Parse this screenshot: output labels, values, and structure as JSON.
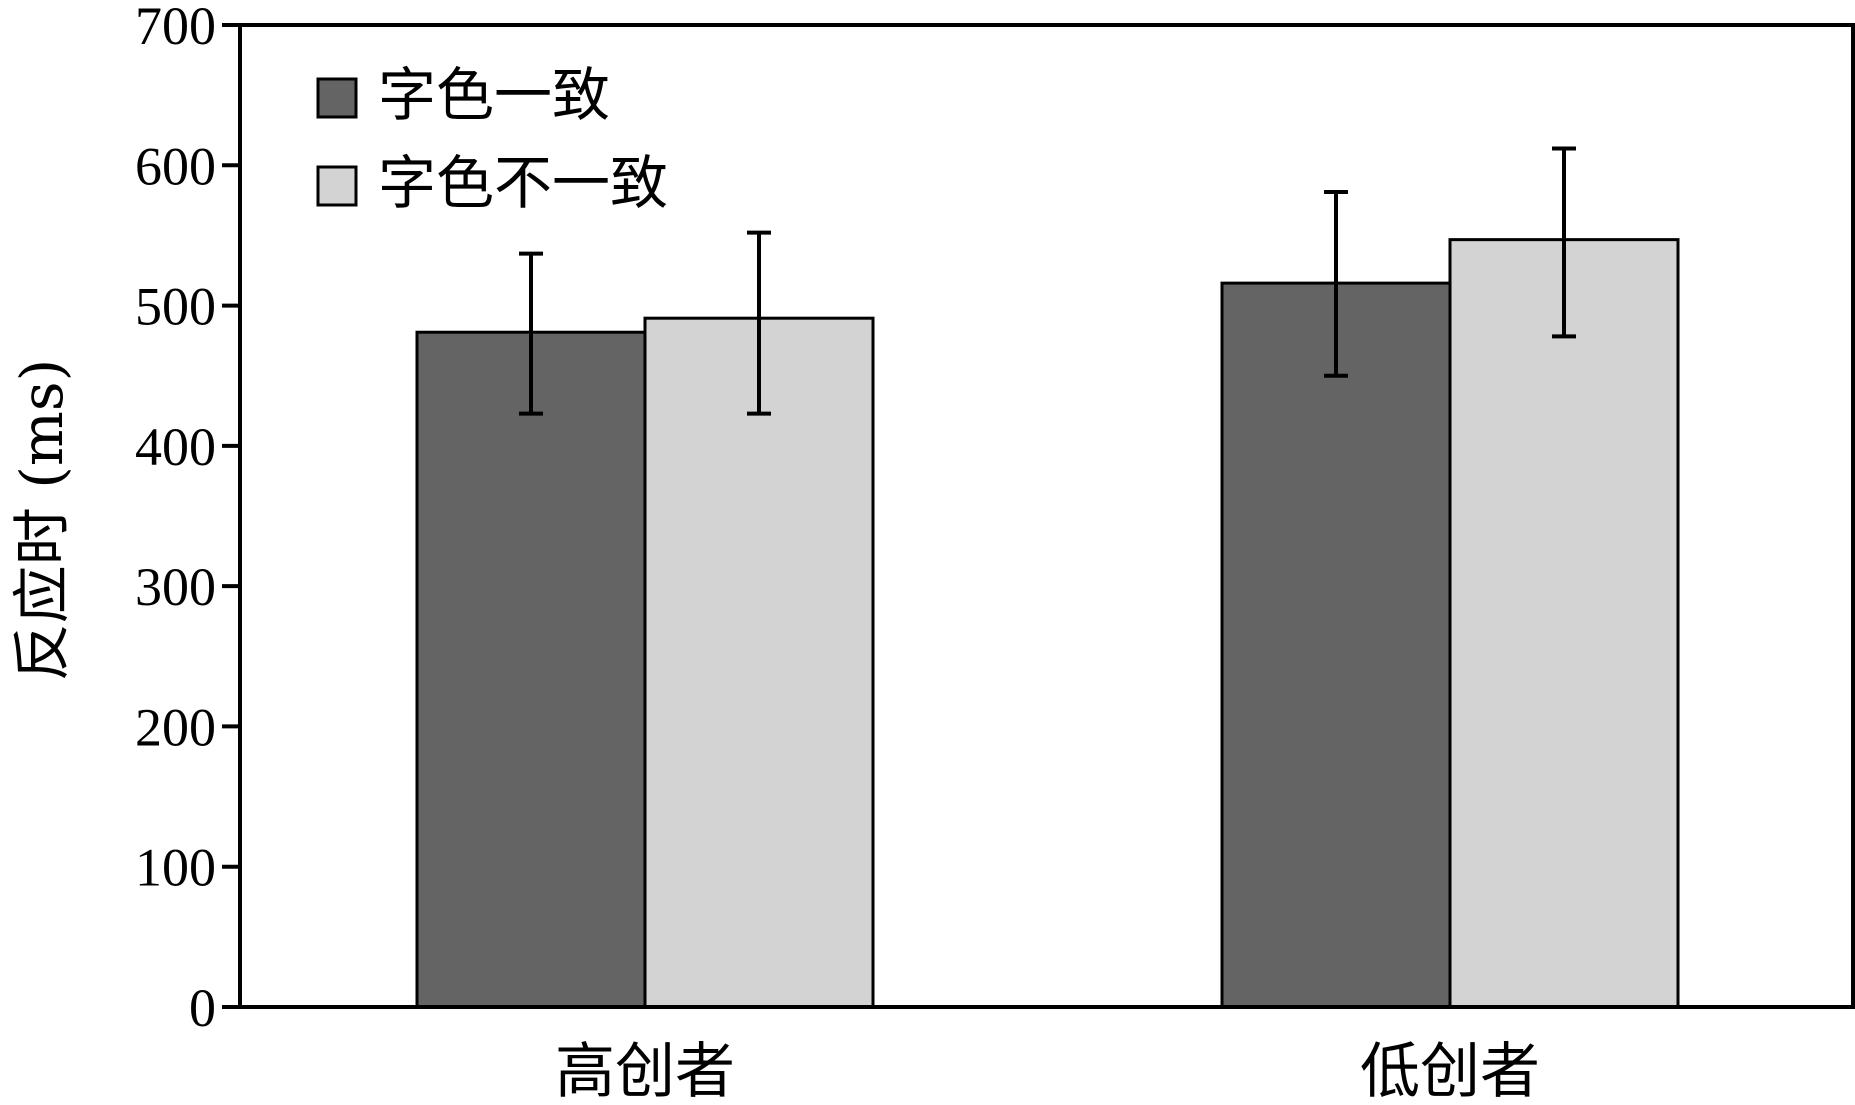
{
  "chart_data": {
    "type": "bar",
    "title": "",
    "xlabel": "",
    "ylabel": "反应时 (ms)",
    "ylim": [
      0,
      700
    ],
    "yticks": [
      0,
      100,
      200,
      300,
      400,
      500,
      600,
      700
    ],
    "grid": false,
    "legend_position": "top-left",
    "categories": [
      "高创者",
      "低创者"
    ],
    "series": [
      {
        "name": "字色一致",
        "color": "#646464",
        "values": [
          481,
          516
        ],
        "error": [
          [
            423,
            537
          ],
          [
            450,
            581
          ]
        ]
      },
      {
        "name": "字色不一致",
        "color": "#d3d3d3",
        "values": [
          491,
          547
        ],
        "error": [
          [
            423,
            552
          ],
          [
            478,
            612
          ]
        ]
      }
    ]
  }
}
